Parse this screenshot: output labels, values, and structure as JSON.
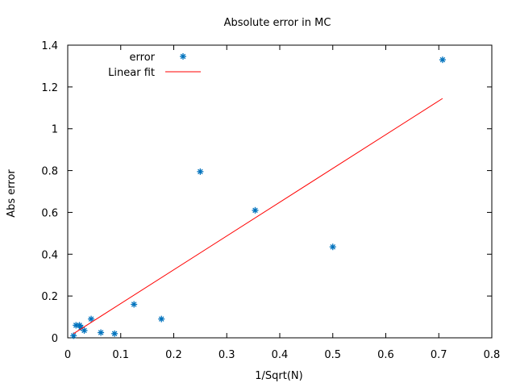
{
  "chart_data": {
    "type": "scatter",
    "title": "Absolute error in MC",
    "xlabel": "1/Sqrt(N)",
    "ylabel": "Abs error",
    "xlim": [
      0,
      0.8
    ],
    "ylim": [
      0,
      1.4
    ],
    "xticks": [
      "0",
      "0.1",
      "0.2",
      "0.3",
      "0.4",
      "0.5",
      "0.6",
      "0.7",
      "0.8"
    ],
    "yticks": [
      "0",
      "0.2",
      "0.4",
      "0.6",
      "0.8",
      "1",
      "1.2",
      "1.4"
    ],
    "grid": false,
    "legend_position": "top-left",
    "series": [
      {
        "name": "error",
        "kind": "points",
        "marker": "asterisk",
        "color": "#0072bd",
        "points": [
          [
            0.011,
            0.01
          ],
          [
            0.0156,
            0.06
          ],
          [
            0.0221,
            0.06
          ],
          [
            0.025,
            0.05
          ],
          [
            0.0312,
            0.035
          ],
          [
            0.0442,
            0.09
          ],
          [
            0.0625,
            0.025
          ],
          [
            0.0884,
            0.02
          ],
          [
            0.125,
            0.16
          ],
          [
            0.1768,
            0.09
          ],
          [
            0.25,
            0.795
          ],
          [
            0.3536,
            0.61
          ],
          [
            0.5,
            0.435
          ],
          [
            0.7071,
            1.33
          ]
        ]
      },
      {
        "name": "Linear fit",
        "kind": "line",
        "color": "#ff0000",
        "points": [
          [
            0.011,
            0.02
          ],
          [
            0.7071,
            1.145
          ]
        ]
      }
    ]
  }
}
